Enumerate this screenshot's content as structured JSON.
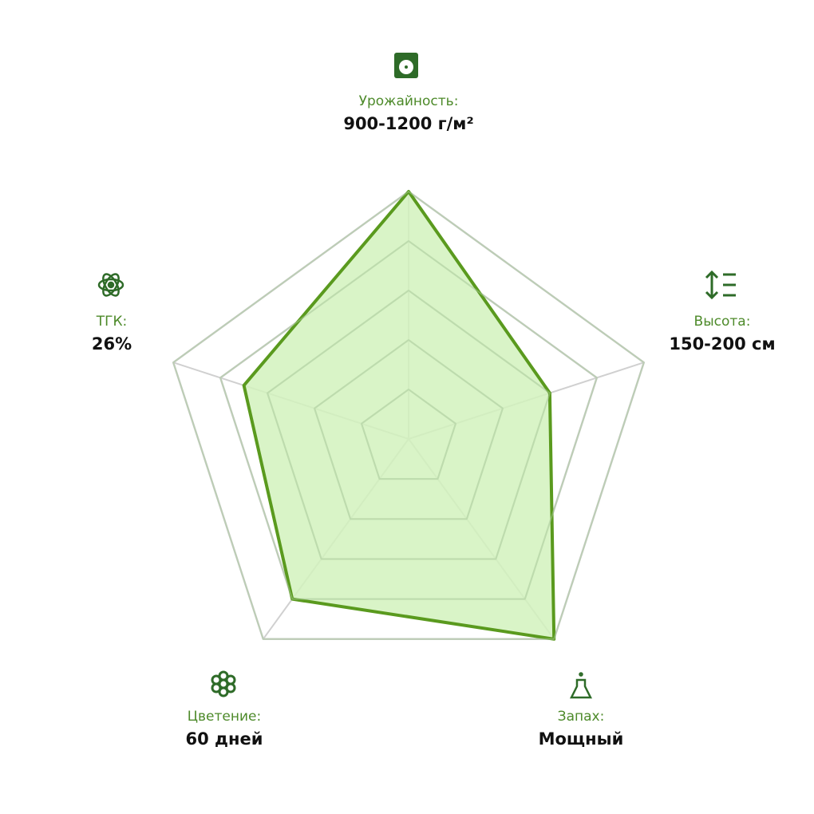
{
  "chart_data": {
    "type": "radar",
    "categories": [
      "Урожайность:",
      "Высота:",
      "Запах:",
      "Цветение:",
      "ТГК:"
    ],
    "descriptions": [
      "900-1200 г/м²",
      "150-200 см",
      "Мощный",
      "60 дней",
      "26%"
    ],
    "values": [
      5,
      3,
      5,
      4,
      3.5
    ],
    "rlim": [
      0,
      5
    ],
    "rticks": [
      1,
      2,
      3,
      4,
      5
    ],
    "color": "#5a9a1e",
    "fill": "#d2f2bd",
    "grid": true
  }
}
